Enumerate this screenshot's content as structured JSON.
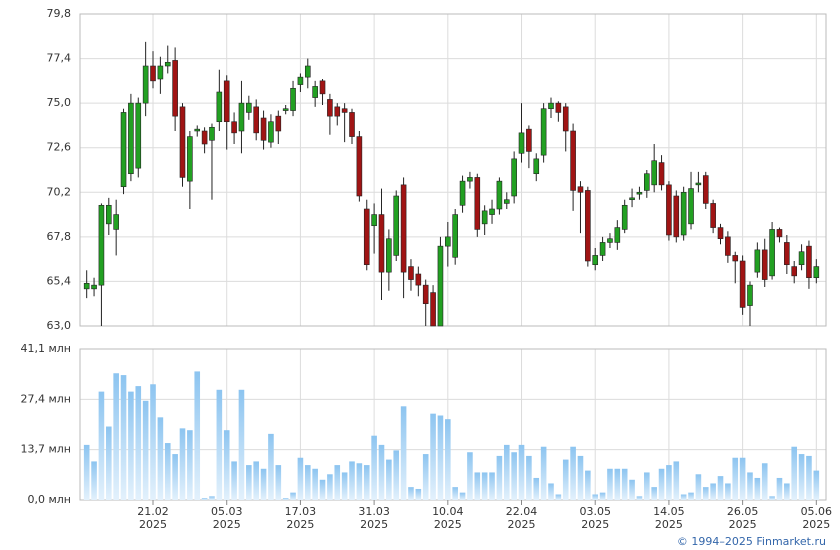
{
  "chart_data": [
    {
      "type": "candlestick",
      "up_color": "#22a022",
      "down_color": "#a01414",
      "open": [
        65.0,
        65.0,
        65.2,
        68.5,
        68.2,
        70.5,
        71.2,
        71.5,
        75.0,
        77.0,
        76.3,
        77.0,
        77.3,
        74.8,
        70.8,
        73.5,
        73.5,
        73.0,
        74.0,
        76.2,
        74.0,
        73.5,
        74.5,
        74.8,
        74.2,
        72.9,
        74.3,
        74.6,
        74.6,
        76.0,
        76.4,
        75.3,
        76.2,
        75.2,
        74.8,
        74.7,
        74.5,
        73.2,
        69.3,
        68.4,
        69.0,
        65.9,
        66.8,
        70.6,
        66.2,
        65.8,
        65.2,
        64.8,
        63.0,
        67.3,
        66.7,
        69.5,
        70.8,
        71.0,
        68.5,
        69.0,
        69.3,
        69.6,
        70.0,
        72.3,
        73.6,
        71.2,
        72.2,
        74.7,
        75.0,
        74.8,
        73.5,
        70.5,
        70.3,
        66.3,
        66.8,
        67.5,
        67.5,
        68.2,
        69.8,
        70.1,
        70.3,
        70.6,
        71.8,
        70.6,
        70.0,
        67.9,
        68.5,
        70.6,
        71.1,
        69.6,
        68.3,
        67.8,
        66.8,
        66.5,
        64.1,
        65.9,
        67.1,
        65.7,
        68.2,
        67.5,
        66.2,
        66.3,
        67.3,
        65.6
      ],
      "high": [
        66.0,
        65.6,
        69.6,
        69.9,
        69.8,
        74.7,
        75.5,
        75.3,
        78.3,
        77.8,
        77.5,
        78.1,
        78.0,
        75.0,
        73.5,
        73.8,
        73.7,
        73.9,
        76.8,
        76.5,
        74.5,
        76.2,
        75.4,
        75.2,
        74.6,
        74.4,
        74.6,
        74.9,
        76.2,
        76.6,
        77.4,
        76.2,
        76.3,
        75.5,
        75.0,
        75.0,
        74.7,
        73.5,
        69.8,
        69.6,
        70.4,
        68.2,
        70.3,
        71.0,
        66.6,
        66.2,
        65.5,
        65.2,
        67.8,
        68.6,
        69.3,
        71.1,
        71.3,
        71.2,
        69.5,
        69.8,
        71.0,
        70.2,
        72.4,
        75.0,
        73.8,
        72.3,
        75.0,
        75.3,
        75.1,
        75.0,
        73.9,
        70.8,
        70.5,
        67.2,
        67.8,
        68.0,
        68.7,
        69.8,
        70.4,
        70.5,
        71.4,
        72.8,
        72.2,
        70.8,
        70.3,
        70.5,
        71.3,
        71.3,
        71.3,
        69.8,
        68.5,
        68.1,
        67.0,
        66.8,
        65.4,
        67.5,
        67.7,
        68.6,
        68.3,
        67.9,
        66.5,
        67.4,
        67.6,
        66.6
      ],
      "low": [
        64.5,
        64.6,
        63.0,
        67.9,
        66.8,
        70.1,
        70.8,
        71.0,
        74.3,
        75.8,
        75.5,
        76.6,
        73.5,
        70.5,
        69.3,
        73.2,
        72.3,
        69.8,
        73.5,
        72.5,
        72.8,
        72.3,
        74.1,
        73.0,
        72.5,
        72.6,
        72.8,
        74.4,
        74.3,
        75.6,
        75.8,
        74.8,
        74.9,
        73.3,
        73.8,
        72.9,
        72.8,
        69.7,
        66.0,
        66.9,
        64.4,
        64.9,
        66.5,
        64.5,
        64.9,
        64.6,
        63.0,
        63.0,
        63.0,
        66.2,
        66.3,
        69.1,
        70.4,
        67.8,
        67.9,
        68.5,
        69.0,
        69.3,
        69.6,
        71.8,
        71.5,
        70.8,
        71.8,
        74.2,
        74.0,
        72.4,
        69.2,
        68.0,
        66.2,
        66.0,
        66.5,
        67.2,
        67.1,
        68.0,
        69.4,
        69.8,
        69.9,
        70.2,
        70.3,
        67.6,
        67.5,
        67.6,
        68.2,
        70.2,
        69.3,
        68.0,
        67.4,
        66.4,
        65.3,
        63.6,
        63.0,
        65.6,
        65.1,
        65.5,
        67.5,
        65.8,
        65.3,
        66.0,
        65.0,
        65.3
      ],
      "close": [
        65.3,
        65.2,
        69.5,
        69.5,
        69.0,
        74.5,
        75.0,
        75.0,
        77.0,
        76.2,
        77.0,
        77.2,
        74.3,
        71.0,
        73.2,
        73.6,
        72.8,
        73.7,
        75.6,
        74.0,
        73.4,
        75.0,
        75.0,
        73.4,
        73.0,
        74.0,
        73.5,
        74.7,
        75.8,
        76.4,
        77.0,
        75.9,
        75.5,
        74.3,
        74.3,
        74.5,
        73.2,
        70.0,
        66.3,
        69.0,
        65.9,
        67.7,
        70.0,
        65.9,
        65.5,
        65.2,
        64.2,
        63.0,
        67.3,
        67.8,
        69.0,
        70.8,
        71.0,
        68.2,
        69.2,
        69.3,
        70.8,
        69.8,
        72.0,
        73.4,
        72.4,
        72.0,
        74.7,
        75.0,
        74.5,
        73.5,
        70.3,
        70.2,
        66.5,
        66.8,
        67.5,
        67.7,
        68.3,
        69.5,
        69.9,
        70.2,
        71.2,
        71.9,
        70.6,
        67.9,
        67.8,
        70.2,
        70.4,
        70.7,
        69.6,
        68.3,
        67.7,
        66.8,
        66.5,
        64.0,
        65.2,
        67.1,
        65.5,
        68.2,
        67.8,
        66.3,
        65.7,
        67.0,
        65.6,
        66.2
      ],
      "ylim": [
        63.0,
        79.8
      ],
      "yticks": [
        {
          "value": 63.0,
          "label": "63,0"
        },
        {
          "value": 65.4,
          "label": "65,4"
        },
        {
          "value": 67.8,
          "label": "67,8"
        },
        {
          "value": 70.2,
          "label": "70,2"
        },
        {
          "value": 72.6,
          "label": "72,6"
        },
        {
          "value": 75.0,
          "label": "75,0"
        },
        {
          "value": 77.4,
          "label": "77,4"
        },
        {
          "value": 79.8,
          "label": "79,8"
        }
      ],
      "grid": true
    },
    {
      "type": "bar",
      "color": "#8cc4f0",
      "categories": [
        null,
        null,
        null,
        null,
        null,
        null,
        null,
        null,
        null,
        [
          "21.02",
          "2025"
        ],
        null,
        null,
        null,
        null,
        null,
        null,
        null,
        null,
        null,
        [
          "05.03",
          "2025"
        ],
        null,
        null,
        null,
        null,
        null,
        null,
        null,
        null,
        null,
        [
          "17.03",
          "2025"
        ],
        null,
        null,
        null,
        null,
        null,
        null,
        null,
        null,
        null,
        [
          "31.03",
          "2025"
        ],
        null,
        null,
        null,
        null,
        null,
        null,
        null,
        null,
        null,
        [
          "10.04",
          "2025"
        ],
        null,
        null,
        null,
        null,
        null,
        null,
        null,
        null,
        null,
        [
          "22.04",
          "2025"
        ],
        null,
        null,
        null,
        null,
        null,
        null,
        null,
        null,
        null,
        [
          "03.05",
          "2025"
        ],
        null,
        null,
        null,
        null,
        null,
        null,
        null,
        null,
        null,
        [
          "14.05",
          "2025"
        ],
        null,
        null,
        null,
        null,
        null,
        null,
        null,
        null,
        null,
        [
          "26.05",
          "2025"
        ],
        null,
        null,
        null,
        null,
        null,
        null,
        null,
        null,
        null,
        [
          "05.06",
          "2025"
        ]
      ],
      "values": [
        15,
        10.5,
        29.5,
        20,
        34.5,
        34,
        29.5,
        31,
        27,
        31.5,
        22.5,
        15.5,
        12.5,
        19.5,
        19,
        35,
        0.5,
        1,
        30,
        19,
        10.5,
        30,
        9.5,
        10.5,
        8.5,
        18,
        9.5,
        0.5,
        2,
        11.5,
        9.5,
        8.5,
        5.5,
        7,
        9.5,
        7.5,
        10.5,
        10,
        9.5,
        17.5,
        15,
        11,
        13.5,
        25.5,
        3.5,
        3,
        12.5,
        23.5,
        23,
        22,
        3.5,
        2,
        13,
        7.5,
        7.5,
        7.5,
        12,
        15,
        13,
        15,
        12,
        6,
        14.5,
        4.5,
        1.5,
        11,
        14.5,
        12,
        8,
        1.5,
        2,
        8.5,
        8.5,
        8.5,
        5.5,
        1,
        7.5,
        3.5,
        8.5,
        9.5,
        10.5,
        1.5,
        2,
        7,
        3.5,
        4.5,
        6.5,
        4.5,
        11.5,
        11.5,
        7.5,
        6,
        10,
        1,
        6,
        4.5,
        14.5,
        12.5,
        12,
        8
      ],
      "ylim": [
        0.0,
        41.1
      ],
      "yticks": [
        {
          "value": 0.0,
          "label": "0,0 млн"
        },
        {
          "value": 13.7,
          "label": "13,7 млн"
        },
        {
          "value": 27.4,
          "label": "27,4 млн"
        },
        {
          "value": 41.1,
          "label": "41,1 млн"
        }
      ],
      "grid": true
    }
  ],
  "footer": "© 1994–2025 Finmarket.ru"
}
